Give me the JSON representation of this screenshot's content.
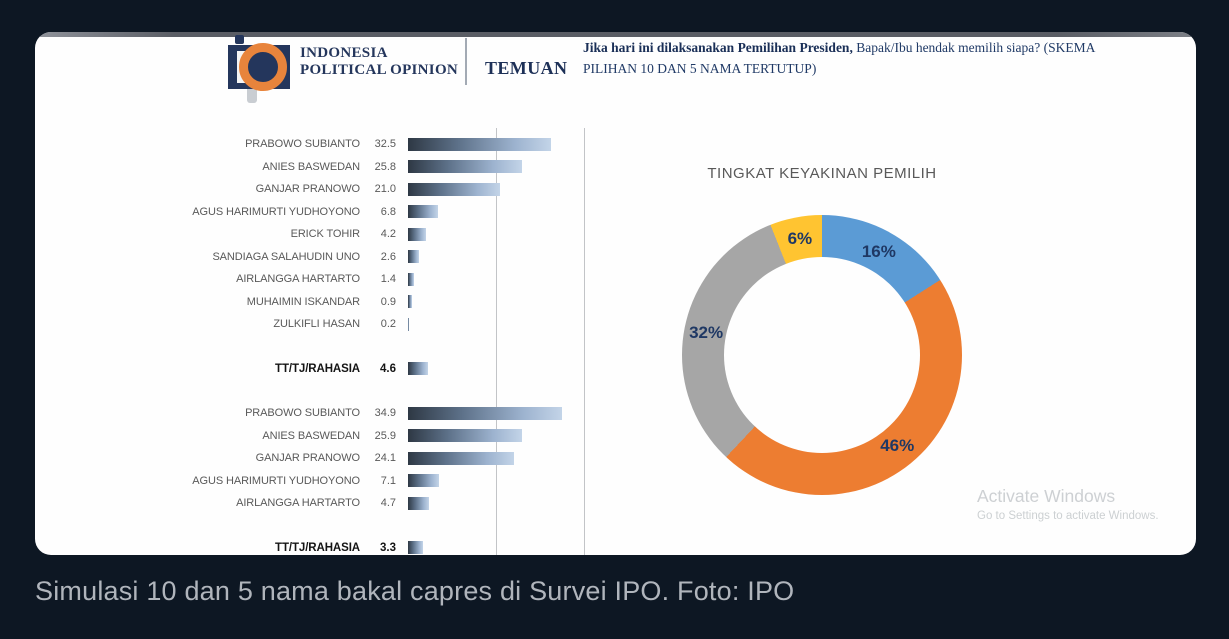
{
  "header": {
    "logo_line1": "INDONESIA",
    "logo_line2": "POLITICAL OPINION",
    "section_label": "TEMUAN",
    "question_bold": "Jika hari ini dilaksanakan Pemilihan Presiden,",
    "question_rest": " Bapak/Ibu hendak memilih siapa? (SKEMA PILIHAN 10 DAN 5 NAMA TERTUTUP)"
  },
  "watermark": {
    "line1": "Activate Windows",
    "line2": "Go to Settings to activate Windows."
  },
  "caption": "Simulasi 10 dan 5 nama bakal capres di Survei IPO. Foto: IPO",
  "colors": {
    "background": "#0d1723",
    "card": "#fefefe",
    "navy_text": "#1f3864",
    "label_gray": "#595959",
    "bar_gradient_dark": "#2e3844",
    "bar_gradient_light": "#c3d4e8",
    "logo_navy": "#24365c",
    "logo_orange": "#E8843C"
  },
  "chart_data": [
    {
      "type": "bar",
      "orientation": "horizontal",
      "title": "",
      "xlabel": "",
      "ylabel": "",
      "axis_max": 40,
      "gridlines_at": [
        20,
        40
      ],
      "groups": [
        {
          "rows": [
            {
              "label": "PRABOWO SUBIANTO",
              "value": 32.5
            },
            {
              "label": "ANIES BASWEDAN",
              "value": 25.8
            },
            {
              "label": "GANJAR PRANOWO",
              "value": 21.0
            },
            {
              "label": "AGUS HARIMURTI YUDHOYONO",
              "value": 6.8
            },
            {
              "label": "ERICK TOHIR",
              "value": 4.2
            },
            {
              "label": "SANDIAGA SALAHUDIN UNO",
              "value": 2.6
            },
            {
              "label": "AIRLANGGA HARTARTO",
              "value": 1.4
            },
            {
              "label": "MUHAIMIN ISKANDAR",
              "value": 0.9
            },
            {
              "label": "ZULKIFLI HASAN",
              "value": 0.2
            },
            {
              "label": "TT/TJ/RAHASIA",
              "value": 4.6,
              "emphasis": true
            }
          ]
        },
        {
          "rows": [
            {
              "label": "PRABOWO SUBIANTO",
              "value": 34.9
            },
            {
              "label": "ANIES BASWEDAN",
              "value": 25.9
            },
            {
              "label": "GANJAR PRANOWO",
              "value": 24.1
            },
            {
              "label": "AGUS HARIMURTI YUDHOYONO",
              "value": 7.1
            },
            {
              "label": "AIRLANGGA HARTARTO",
              "value": 4.7
            },
            {
              "label": "TT/TJ/RAHASIA",
              "value": 3.3,
              "emphasis": true
            }
          ]
        }
      ]
    },
    {
      "type": "donut",
      "title": "TINGKAT KEYAKINAN PEMILIH",
      "start_angle_deg": 0,
      "direction": "clockwise",
      "slices": [
        {
          "label": "16%",
          "value": 16,
          "color": "#5B9BD5"
        },
        {
          "label": "46%",
          "value": 46,
          "color": "#ED7D31"
        },
        {
          "label": "32%",
          "value": 32,
          "color": "#A6A6A6"
        },
        {
          "label": "6%",
          "value": 6,
          "color": "#FFC431"
        }
      ]
    }
  ]
}
